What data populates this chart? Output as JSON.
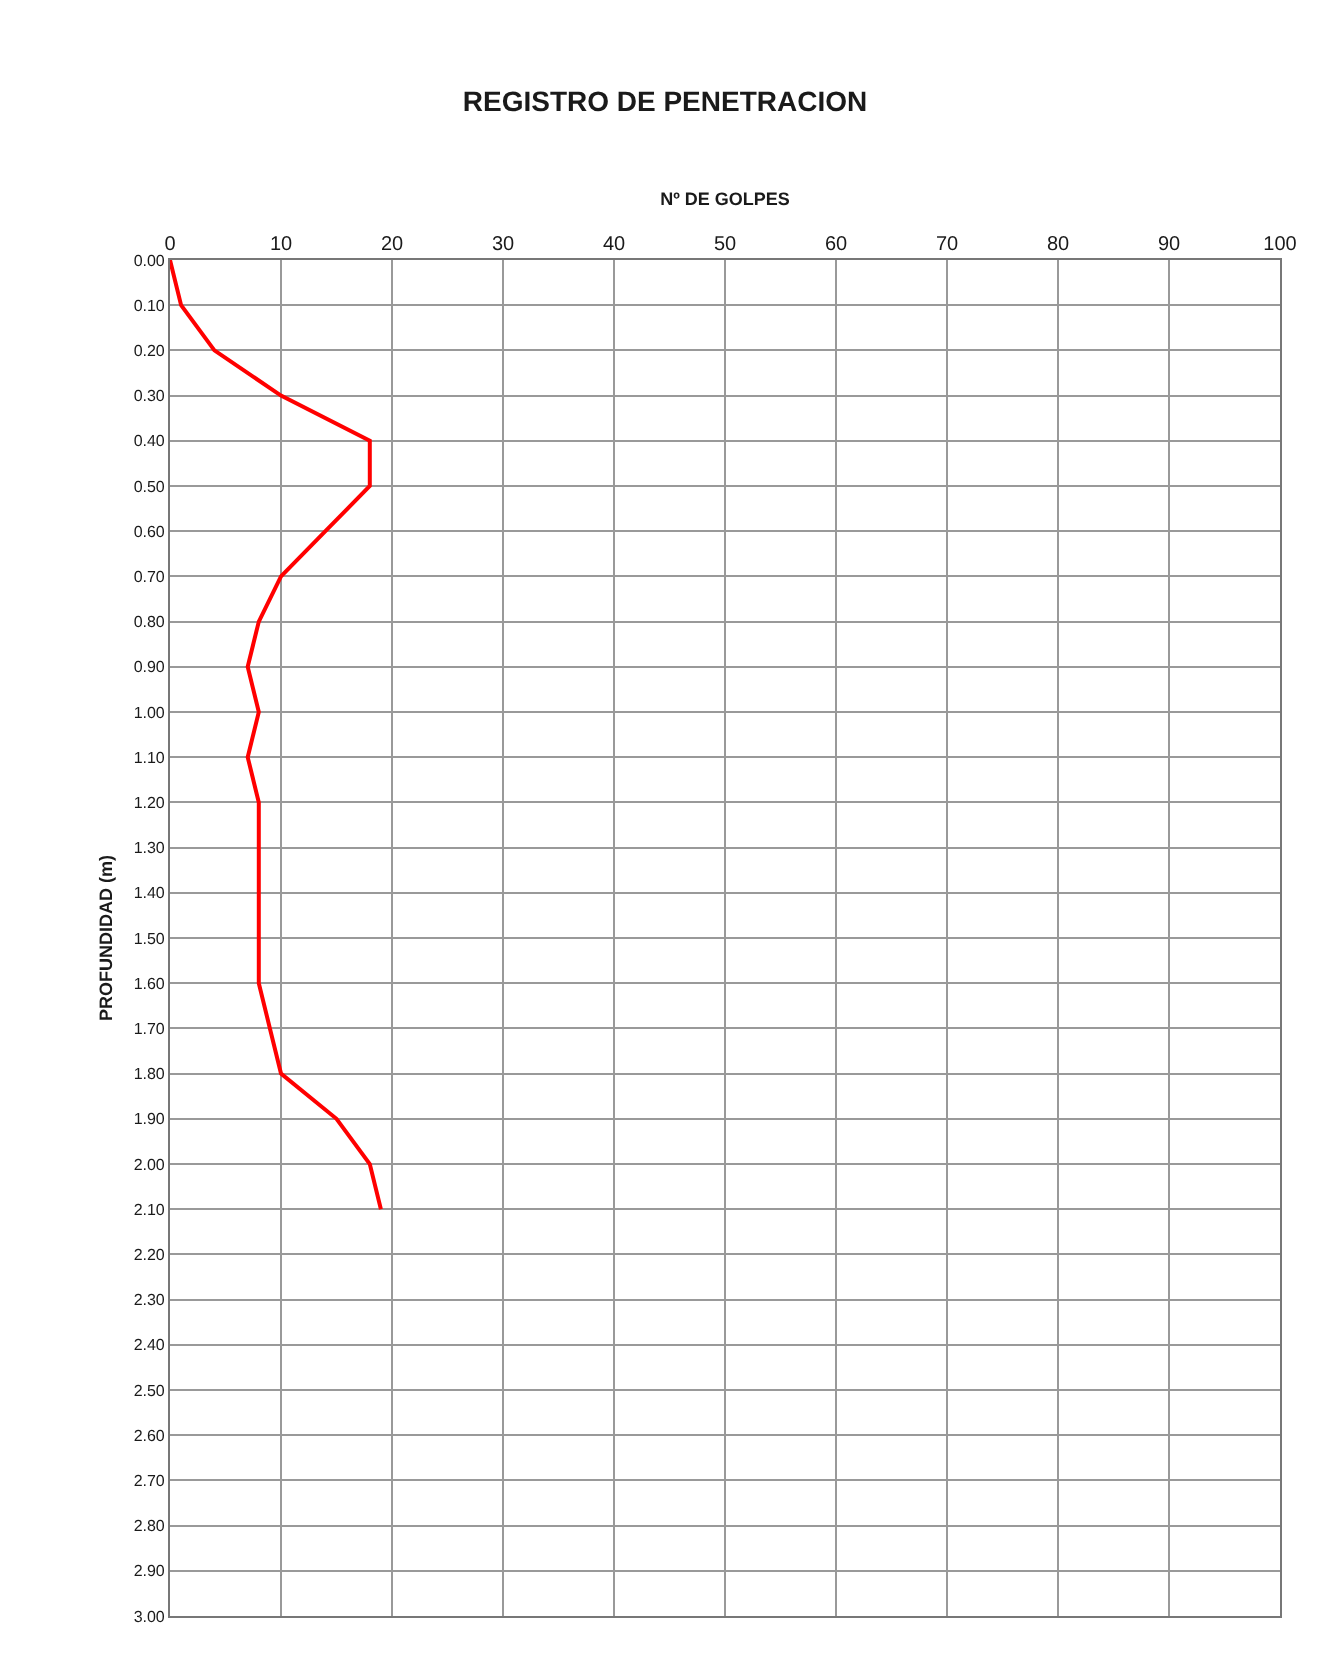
{
  "chart_data": {
    "type": "line",
    "title": "REGISTRO DE PENETRACION",
    "xlabel": "Nº DE GOLPES",
    "ylabel": "PROFUNDIDAD (m)",
    "x": [
      0,
      1,
      4,
      10,
      18,
      18,
      14,
      10,
      8,
      7,
      8,
      7,
      8,
      8,
      8,
      8,
      8,
      9,
      10,
      15,
      18,
      19
    ],
    "series": [
      {
        "color": "#ff0000",
        "values": [
          0.0,
          0.1,
          0.2,
          0.3,
          0.4,
          0.5,
          0.6,
          0.7,
          0.8,
          0.9,
          1.0,
          1.1,
          1.2,
          1.3,
          1.4,
          1.5,
          1.6,
          1.7,
          1.8,
          1.9,
          2.0,
          2.1
        ]
      }
    ],
    "xlim": [
      0,
      100
    ],
    "xticks": [
      0,
      10,
      20,
      30,
      40,
      50,
      60,
      70,
      80,
      90,
      100
    ],
    "ylim": [
      3.0,
      0.0
    ],
    "yticks": [
      {
        "value": 0.0,
        "label": "0.00"
      },
      {
        "value": 0.1,
        "label": "0.10"
      },
      {
        "value": 0.2,
        "label": "0.20"
      },
      {
        "value": 0.3,
        "label": "0.30"
      },
      {
        "value": 0.4,
        "label": "0.40"
      },
      {
        "value": 0.5,
        "label": "0.50"
      },
      {
        "value": 0.6,
        "label": "0.60"
      },
      {
        "value": 0.7,
        "label": "0.70"
      },
      {
        "value": 0.8,
        "label": "0.80"
      },
      {
        "value": 0.9,
        "label": "0.90"
      },
      {
        "value": 1.0,
        "label": "1.00"
      },
      {
        "value": 1.1,
        "label": "1.10"
      },
      {
        "value": 1.2,
        "label": "1.20"
      },
      {
        "value": 1.3,
        "label": "1.30"
      },
      {
        "value": 1.4,
        "label": "1.40"
      },
      {
        "value": 1.5,
        "label": "1.50"
      },
      {
        "value": 1.6,
        "label": "1.60"
      },
      {
        "value": 1.7,
        "label": "1.70"
      },
      {
        "value": 1.8,
        "label": "1.80"
      },
      {
        "value": 1.9,
        "label": "1.90"
      },
      {
        "value": 2.0,
        "label": "2.00"
      },
      {
        "value": 2.1,
        "label": "2.10"
      },
      {
        "value": 2.2,
        "label": "2.20"
      },
      {
        "value": 2.3,
        "label": "2.30"
      },
      {
        "value": 2.4,
        "label": "2.40"
      },
      {
        "value": 2.5,
        "label": "2.50"
      },
      {
        "value": 2.6,
        "label": "2.60"
      },
      {
        "value": 2.7,
        "label": "2.70"
      },
      {
        "value": 2.8,
        "label": "2.80"
      },
      {
        "value": 2.9,
        "label": "2.90"
      },
      {
        "value": 3.0,
        "label": "3.00"
      }
    ],
    "grid": true,
    "marker": "none",
    "line_style": "solid"
  }
}
